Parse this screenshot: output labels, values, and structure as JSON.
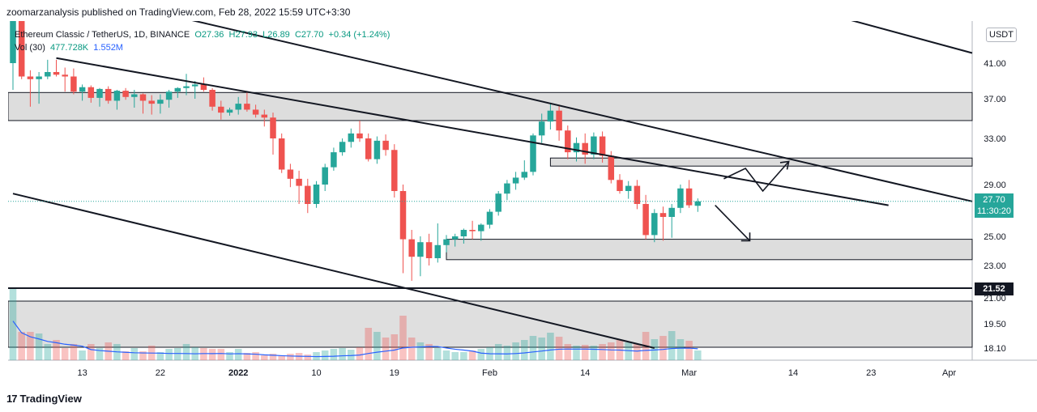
{
  "header": {
    "published_line": "zoomarzanalysis published on TradingView.com, Feb 28, 2022 15:59 UTC+3:30"
  },
  "legend": {
    "symbol": "Ethereum Classic / TetherUS, 1D, BINANCE",
    "open": "O27.36",
    "high": "H27.93",
    "low": "L26.89",
    "close": "C27.70",
    "change": "+0.34 (+1.24%)",
    "vol_label": "Vol (30)",
    "vol_value": "477.728K",
    "vol_ma": "1.552M"
  },
  "currency_button": "USDT",
  "price_tag": {
    "price": "27.70",
    "countdown": "11:30:20"
  },
  "level_tag": "21.52",
  "footer": {
    "brand": "TradingView",
    "logo_text": "17"
  },
  "colors": {
    "up": "#26a69a",
    "down": "#ef5350",
    "zone": "#d1d1d1",
    "ma": "#2962ff"
  },
  "chart_data": {
    "type": "candlestick",
    "title": "Ethereum Classic / TetherUS, 1D, BINANCE",
    "y_ticks": [
      "41.00",
      "37.00",
      "33.00",
      "29.00",
      "25.00",
      "23.00",
      "21.00",
      "19.50",
      "18.10"
    ],
    "y_tick_values": [
      41,
      37,
      33,
      29,
      25,
      23,
      21,
      19.5,
      18.1
    ],
    "y_top_label": "4",
    "x_ticks": [
      "13",
      "22",
      "2022",
      "10",
      "19",
      "Feb",
      "14",
      "Mar",
      "14",
      "23",
      "Apr"
    ],
    "x_tick_index": [
      8,
      17,
      26,
      35,
      44,
      55,
      66,
      78,
      90,
      99,
      108
    ],
    "last_price": 27.7,
    "horizontal_level": 21.52,
    "zones": [
      [
        34.8,
        37.7
      ],
      [
        30.6,
        31.3
      ],
      [
        23.4,
        24.8
      ]
    ],
    "candles": [
      [
        41,
        43.5,
        38,
        43.5
      ],
      [
        43.5,
        45,
        39.2,
        39.5
      ],
      [
        39.5,
        40.2,
        36.2,
        39.2
      ],
      [
        39.2,
        40,
        36.5,
        39.5
      ],
      [
        39.5,
        41.2,
        39.2,
        40
      ],
      [
        40,
        41.2,
        39.5,
        39.7
      ],
      [
        39.7,
        40.5,
        37.8,
        39.5
      ],
      [
        39.5,
        40.4,
        37.5,
        37.8
      ],
      [
        37.8,
        38.6,
        36.8,
        38.3
      ],
      [
        38.3,
        38.5,
        36.6,
        37.1
      ],
      [
        37.1,
        38.2,
        36.2,
        38.1
      ],
      [
        38.1,
        38.4,
        36.5,
        36.8
      ],
      [
        36.8,
        38.0,
        35.9,
        37.9
      ],
      [
        37.9,
        38.2,
        36.9,
        37.2
      ],
      [
        37.2,
        38,
        36.1,
        37.5
      ],
      [
        37.5,
        37.6,
        35.5,
        36.8
      ],
      [
        36.8,
        37.4,
        35.4,
        36.5
      ],
      [
        36.5,
        37.5,
        35.5,
        36.9
      ],
      [
        36.9,
        38.0,
        36.1,
        37.8
      ],
      [
        37.8,
        38.3,
        37.1,
        38.2
      ],
      [
        38.2,
        39.8,
        37.4,
        38.4
      ],
      [
        38.4,
        39.0,
        37.0,
        38.6
      ],
      [
        38.6,
        39.4,
        37.8,
        38.0
      ],
      [
        38.0,
        38.2,
        35.8,
        36.2
      ],
      [
        36.2,
        36.8,
        34.9,
        35.6
      ],
      [
        35.6,
        36.1,
        35.3,
        35.9
      ],
      [
        35.9,
        37.2,
        35.4,
        36.5
      ],
      [
        36.5,
        37.7,
        35.7,
        35.9
      ],
      [
        35.9,
        36.4,
        35.1,
        35.4
      ],
      [
        35.4,
        35.9,
        34.2,
        35.1
      ],
      [
        35.1,
        35.6,
        31.6,
        33.0
      ],
      [
        33.0,
        33.5,
        30.0,
        30.3
      ],
      [
        30.3,
        30.8,
        28.8,
        29.5
      ],
      [
        29.5,
        30.2,
        27.5,
        28.9
      ],
      [
        28.9,
        29.5,
        26.8,
        27.5
      ],
      [
        27.5,
        29.3,
        27.2,
        29.0
      ],
      [
        29.0,
        30.8,
        28.5,
        30.5
      ],
      [
        30.5,
        32.2,
        30.2,
        31.8
      ],
      [
        31.8,
        33.0,
        31.5,
        32.7
      ],
      [
        32.7,
        34.0,
        32.2,
        33.5
      ],
      [
        33.5,
        34.8,
        32.7,
        33.0
      ],
      [
        33.0,
        33.5,
        31.0,
        31.2
      ],
      [
        31.2,
        33.2,
        30.8,
        32.8
      ],
      [
        32.8,
        33.4,
        31.5,
        32.0
      ],
      [
        32.0,
        32.5,
        28.0,
        28.5
      ],
      [
        28.5,
        29.0,
        22.5,
        24.8
      ],
      [
        24.8,
        25.5,
        22.0,
        23.6
      ],
      [
        23.6,
        25.0,
        22.3,
        24.6
      ],
      [
        24.6,
        25.2,
        23.0,
        23.5
      ],
      [
        23.5,
        26.0,
        23.2,
        24.4
      ],
      [
        24.4,
        25.1,
        23.9,
        24.8
      ],
      [
        24.8,
        25.2,
        24.3,
        25.0
      ],
      [
        25.0,
        25.6,
        24.5,
        25.5
      ],
      [
        25.5,
        26.2,
        24.8,
        25.4
      ],
      [
        25.4,
        26.0,
        24.7,
        25.9
      ],
      [
        25.9,
        27.1,
        25.6,
        26.9
      ],
      [
        26.9,
        28.5,
        26.6,
        28.3
      ],
      [
        28.3,
        29.4,
        27.8,
        29.1
      ],
      [
        29.1,
        30.1,
        28.6,
        29.6
      ],
      [
        29.6,
        31.1,
        29.4,
        30.1
      ],
      [
        30.1,
        33.5,
        29.8,
        33.3
      ],
      [
        33.3,
        35.5,
        32.6,
        34.7
      ],
      [
        34.7,
        36.6,
        33.9,
        35.8
      ],
      [
        35.8,
        36.4,
        32.8,
        33.8
      ],
      [
        33.8,
        34.3,
        31.2,
        31.8
      ],
      [
        31.8,
        33.1,
        31.0,
        32.6
      ],
      [
        32.6,
        33.5,
        30.8,
        31.6
      ],
      [
        31.6,
        33.6,
        31.2,
        33.2
      ],
      [
        33.2,
        33.7,
        30.9,
        31.5
      ],
      [
        31.5,
        31.9,
        29.1,
        29.4
      ],
      [
        29.4,
        29.9,
        28.3,
        28.5
      ],
      [
        28.5,
        29.3,
        27.9,
        28.9
      ],
      [
        28.9,
        29.4,
        27.1,
        27.5
      ],
      [
        27.5,
        28.2,
        24.8,
        25.1
      ],
      [
        25.1,
        27.1,
        24.6,
        26.8
      ],
      [
        26.8,
        27.3,
        24.7,
        26.5
      ],
      [
        26.5,
        27.5,
        24.9,
        27.2
      ],
      [
        27.2,
        29.0,
        26.8,
        28.7
      ],
      [
        28.7,
        29.4,
        27.2,
        27.4
      ],
      [
        27.36,
        27.93,
        26.89,
        27.7
      ]
    ],
    "volume": [
      88,
      35,
      35,
      33,
      20,
      25,
      15,
      20,
      12,
      20,
      15,
      22,
      20,
      11,
      15,
      11,
      18,
      10,
      14,
      15,
      20,
      16,
      15,
      14,
      14,
      10,
      14,
      9,
      10,
      6,
      8,
      6,
      8,
      9,
      7,
      10,
      12,
      14,
      15,
      13,
      16,
      40,
      35,
      28,
      32,
      55,
      28,
      22,
      20,
      15,
      12,
      10,
      10,
      12,
      14,
      16,
      20,
      18,
      22,
      25,
      30,
      28,
      34,
      29,
      20,
      18,
      19,
      18,
      20,
      22,
      25,
      22,
      20,
      35,
      26,
      30,
      36,
      26,
      24,
      12
    ]
  }
}
